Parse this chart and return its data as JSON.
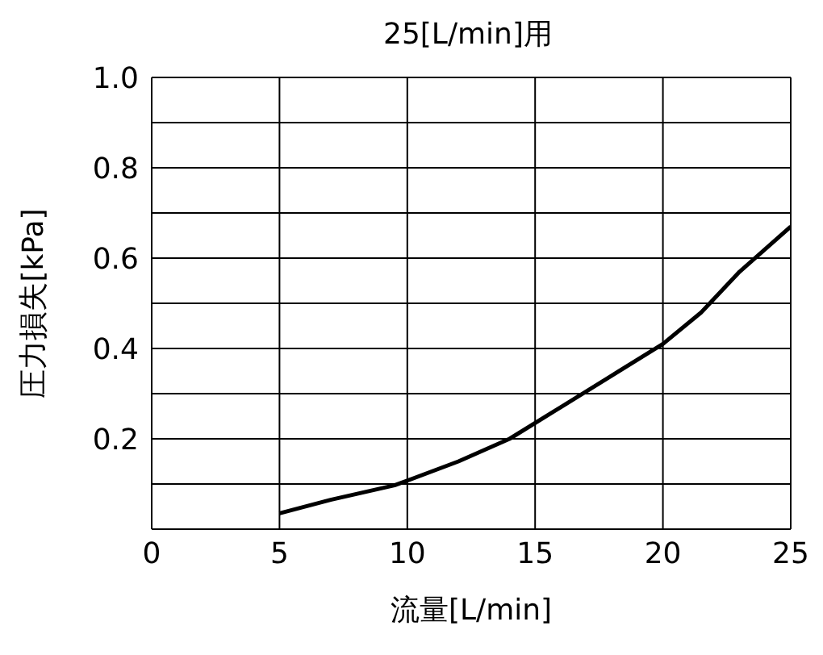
{
  "chart_data": {
    "type": "line",
    "title": "25[L/min]用",
    "xlabel": "流量[L/min]",
    "ylabel": "圧力損失[kPa]",
    "x": [
      5,
      7,
      9.5,
      12,
      14,
      16,
      18,
      20,
      21.5,
      23,
      25
    ],
    "series": [
      {
        "color": "#000000",
        "values": [
          0.035,
          0.065,
          0.097,
          0.15,
          0.2,
          0.27,
          0.34,
          0.41,
          0.48,
          0.57,
          0.67
        ]
      }
    ],
    "xlim": [
      0,
      25
    ],
    "xticks": [
      0,
      5,
      10,
      15,
      20,
      25
    ],
    "ylim": [
      0,
      1.0
    ],
    "yticks": [
      {
        "value": 0,
        "label": null
      },
      {
        "value": 0.1,
        "label": null
      },
      {
        "value": 0.2,
        "label": "0.2"
      },
      {
        "value": 0.3,
        "label": null
      },
      {
        "value": 0.4,
        "label": "0.4"
      },
      {
        "value": 0.5,
        "label": null
      },
      {
        "value": 0.6,
        "label": "0.6"
      },
      {
        "value": 0.7,
        "label": null
      },
      {
        "value": 0.8,
        "label": "0.8"
      },
      {
        "value": 0.9,
        "label": null
      },
      {
        "value": 1.0,
        "label": "1.0"
      }
    ],
    "grid": true,
    "marker": "none",
    "line_style": "solid"
  }
}
